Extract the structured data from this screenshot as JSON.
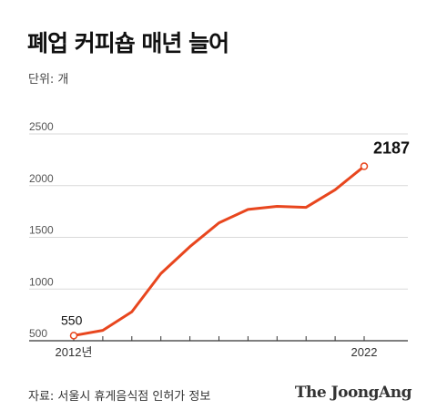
{
  "header": {
    "title": "폐업 커피숍 매년 늘어",
    "unit": "단위: 개"
  },
  "chart_data": {
    "type": "line",
    "title": "폐업 커피숍 매년 늘어",
    "unit_label": "단위: 개",
    "x": [
      2012,
      2013,
      2014,
      2015,
      2016,
      2017,
      2018,
      2019,
      2020,
      2021,
      2022
    ],
    "x_tick_labels": [
      {
        "x": 2012,
        "label": "2012년"
      },
      {
        "x": 2022,
        "label": "2022"
      }
    ],
    "series": [
      {
        "values": [
          550,
          600,
          780,
          1150,
          1410,
          1640,
          1770,
          1800,
          1790,
          1960,
          2187
        ]
      }
    ],
    "data_labels": [
      {
        "x": 2012,
        "value": "550"
      },
      {
        "x": 2022,
        "value": "2187"
      }
    ],
    "y_ticks": [
      "500",
      "1000",
      "1500",
      "2000",
      "2500"
    ],
    "ylim": [
      500,
      2500
    ],
    "xlim": [
      2012,
      2022
    ],
    "grid": true,
    "line_color": "#e8461e",
    "grid_color": "#d9d9d9",
    "axis_color": "#333333"
  },
  "footer": {
    "source": "자료: 서울시 휴게음식점 인허가 정보",
    "brand": "The JoongAng"
  }
}
